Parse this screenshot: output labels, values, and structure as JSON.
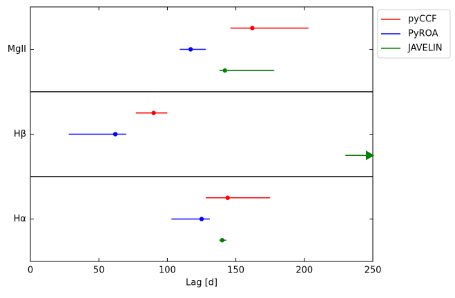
{
  "chart_data": {
    "type": "errorbar",
    "xlabel": "Lag [d]",
    "categories": [
      "MgII",
      "Hβ",
      "Hα"
    ],
    "xlim": [
      0,
      250
    ],
    "xticks": [
      0,
      50,
      100,
      150,
      200,
      250
    ],
    "legend": "upper right outside",
    "series": [
      {
        "name": "pyCCF",
        "color": "#ff0000",
        "values": [
          162,
          90,
          144
        ],
        "err_low": [
          146,
          77,
          128
        ],
        "err_high": [
          203,
          100,
          175
        ]
      },
      {
        "name": "PyROA",
        "color": "#0000ff",
        "values": [
          117,
          62,
          125
        ],
        "err_low": [
          109,
          28,
          103
        ],
        "err_high": [
          128,
          70,
          131
        ]
      },
      {
        "name": "JAVELIN",
        "color": "#008000",
        "values": [
          142,
          null,
          140
        ],
        "err_low": [
          138,
          230,
          138
        ],
        "err_high": [
          178,
          null,
          143
        ]
      }
    ]
  }
}
